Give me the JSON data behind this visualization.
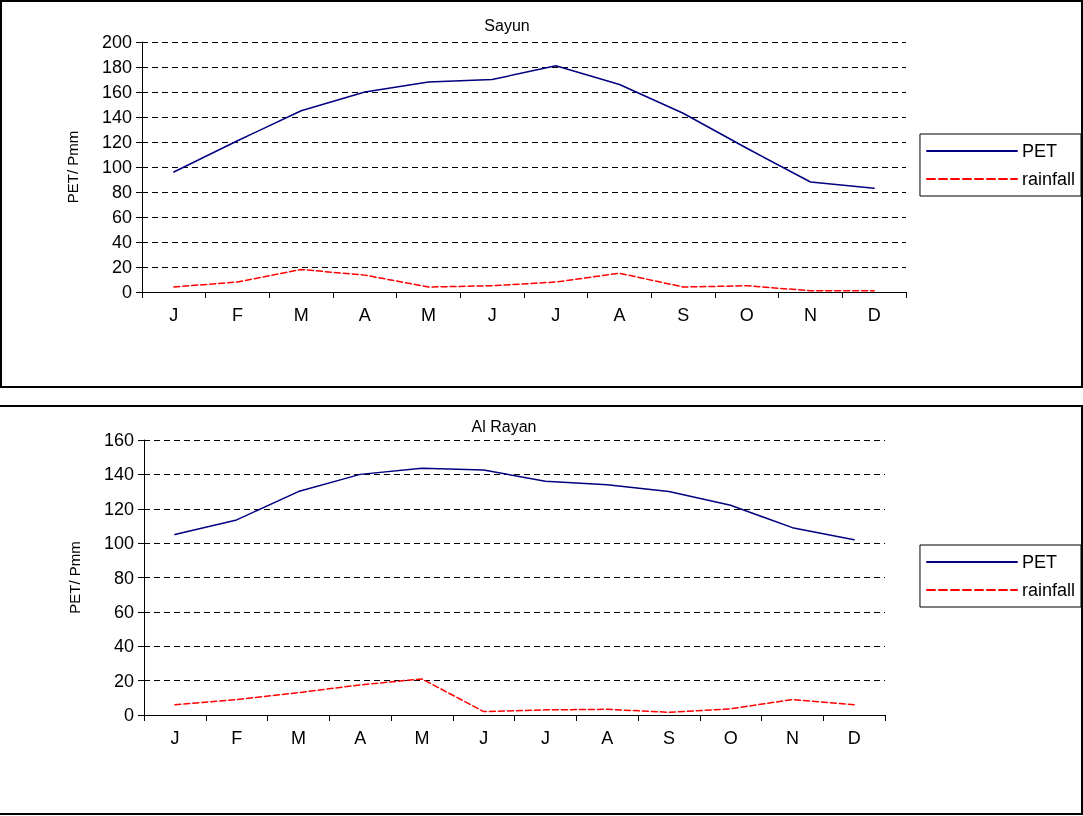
{
  "chart_data": [
    {
      "type": "line",
      "title": "Sayun",
      "ylabel": "PET/ Pmm",
      "categories": [
        "J",
        "F",
        "M",
        "A",
        "M",
        "J",
        "J",
        "A",
        "S",
        "O",
        "N",
        "D"
      ],
      "series": [
        {
          "name": "PET",
          "color": "#000080",
          "line_style": "solid",
          "values": [
            96,
            121,
            145,
            160,
            168,
            170,
            181,
            166,
            143,
            115,
            88,
            83
          ]
        },
        {
          "name": "rainfall",
          "color": "#ff0000",
          "line_style": "dashed",
          "values": [
            4,
            8,
            18,
            13.5,
            4,
            5,
            8,
            15,
            4,
            5,
            1,
            1
          ]
        }
      ],
      "ylim": [
        0,
        200
      ],
      "yticks": [
        0,
        20,
        40,
        60,
        80,
        100,
        120,
        140,
        160,
        180,
        200
      ],
      "grid": "y",
      "legend": "right",
      "marker": "none"
    },
    {
      "type": "line",
      "title": "Al Rayan",
      "ylabel": "PET/ Pmm",
      "categories": [
        "J",
        "F",
        "M",
        "A",
        "M",
        "J",
        "J",
        "A",
        "S",
        "O",
        "N",
        "D"
      ],
      "series": [
        {
          "name": "PET",
          "color": "#000080",
          "line_style": "solid",
          "values": [
            105,
            113.5,
            130,
            140,
            143.5,
            142.5,
            136,
            134,
            130,
            122,
            109,
            102
          ]
        },
        {
          "name": "rainfall",
          "color": "#ff0000",
          "line_style": "dashed",
          "values": [
            6,
            9,
            13,
            17.5,
            21,
            2,
            3,
            3.3,
            1.6,
            3.6,
            9,
            6
          ]
        }
      ],
      "ylim": [
        0,
        160
      ],
      "yticks": [
        0,
        20,
        40,
        60,
        80,
        100,
        120,
        140,
        160
      ],
      "grid": "y",
      "legend": "right",
      "marker": "none"
    }
  ]
}
